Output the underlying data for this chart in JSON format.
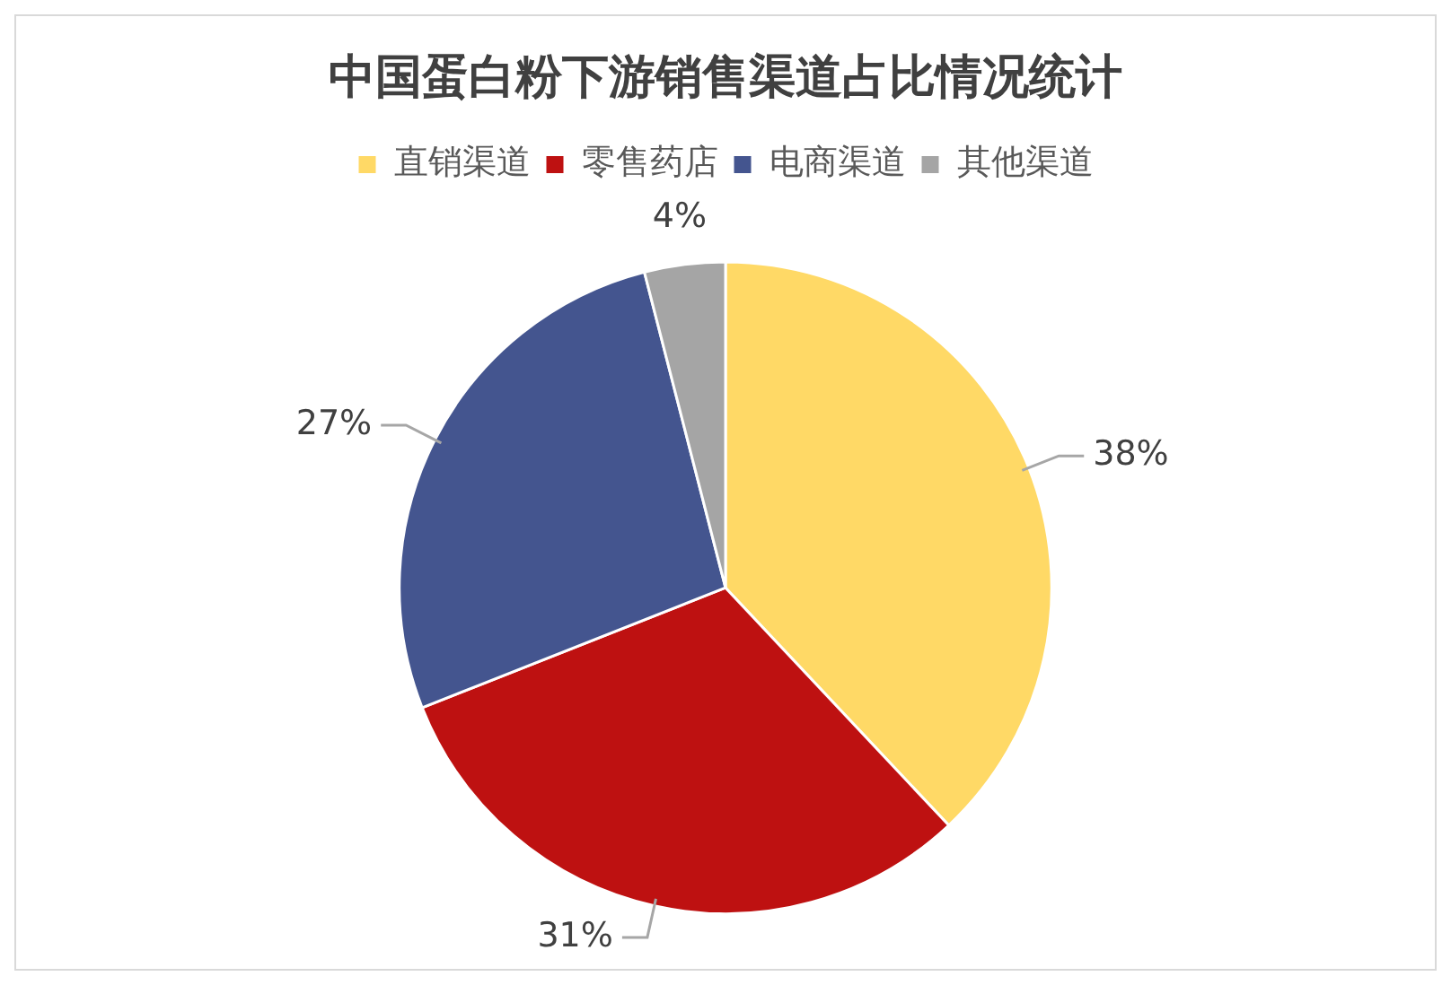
{
  "chart_data": {
    "type": "pie",
    "title": "中国蛋白粉下游销售渠道占比情况统计",
    "categories": [
      "直销渠道",
      "零售药店",
      "电商渠道",
      "其他渠道"
    ],
    "values": [
      38,
      31,
      27,
      4
    ],
    "colors": [
      "#ffd966",
      "#be1111",
      "#44558f",
      "#a5a5a5"
    ],
    "value_labels": [
      "38%",
      "31%",
      "27%",
      "4%"
    ],
    "legend": "top"
  }
}
